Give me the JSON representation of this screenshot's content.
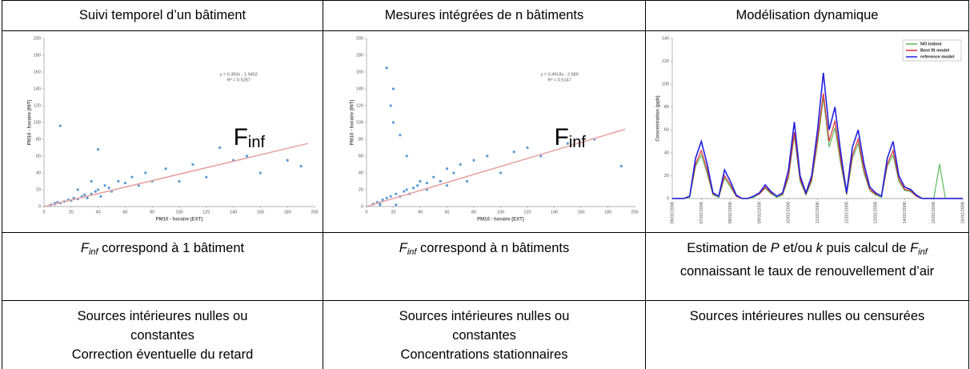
{
  "table": {
    "header": [
      "Suivi temporel d’un bâtiment",
      "Mesures intégrées de n bâtiments",
      "Modélisation dynamique"
    ],
    "row_finf": [
      [
        "F",
        "inf",
        " correspond à 1 bâtiment"
      ],
      [
        "F",
        "inf",
        " correspond à n bâtiments"
      ],
      [
        "Estimation de ",
        "P",
        " et/ou ",
        "k",
        " puis calcul de ",
        "F",
        "inf",
        " connaissant le taux de renouvellement d’air"
      ]
    ],
    "row_sources": [
      [
        "Sources intérieures nulles ou constantes",
        "Correction éventuelle du retard"
      ],
      [
        "Sources intérieures nulles ou constantes",
        "Concentrations stationnaires"
      ],
      [
        "Sources intérieures nulles ou censurées"
      ]
    ]
  },
  "charts": [
    {
      "type": "scatter",
      "xlabel": "PM10 - horaire (EXT)",
      "ylabel": "PM10 - horaire (INT)",
      "equation": "y = 0.393x - 1.9452",
      "r2": "R² = 0.5287",
      "annotation": [
        "F",
        "inf"
      ],
      "xlim": [
        0,
        200
      ],
      "ylim": [
        0,
        200
      ],
      "xticks": [
        0,
        20,
        40,
        60,
        80,
        100,
        120,
        140,
        160,
        180,
        200
      ],
      "yticks": [
        0,
        20,
        40,
        60,
        80,
        100,
        120,
        140,
        160,
        180,
        200
      ],
      "color": "#5b9bd5",
      "trend_color": "#e8a0a0",
      "trend_x": [
        0,
        195
      ],
      "trend_y": [
        0,
        75
      ],
      "x": [
        5,
        8,
        10,
        12,
        15,
        18,
        20,
        22,
        25,
        28,
        30,
        32,
        35,
        38,
        40,
        42,
        45,
        48,
        50,
        55,
        60,
        65,
        70,
        75,
        80,
        90,
        100,
        110,
        120,
        130,
        140,
        150,
        160,
        180,
        190,
        12,
        40,
        25,
        35,
        8
      ],
      "y": [
        2,
        4,
        5,
        4,
        6,
        8,
        7,
        10,
        9,
        12,
        14,
        10,
        15,
        18,
        20,
        12,
        25,
        22,
        18,
        30,
        28,
        35,
        25,
        40,
        30,
        45,
        30,
        50,
        35,
        70,
        55,
        60,
        40,
        55,
        48,
        96,
        68,
        20,
        30,
        3
      ]
    },
    {
      "type": "scatter",
      "xlabel": "PM10 - horaire (EXT)",
      "ylabel": "PM10 - horaire (INT)",
      "equation": "y = 0.4918x - 2.689",
      "r2": "R² = 0.5147",
      "annotation": [
        "F",
        "inf"
      ],
      "xlim": [
        0,
        200
      ],
      "ylim": [
        0,
        200
      ],
      "xticks": [
        0,
        20,
        40,
        60,
        80,
        100,
        120,
        140,
        160,
        180,
        200
      ],
      "yticks": [
        0,
        20,
        40,
        60,
        80,
        100,
        120,
        140,
        160,
        180,
        200
      ],
      "color": "#5b9bd5",
      "trend_color": "#e8a0a0",
      "trend_x": [
        0,
        193
      ],
      "trend_y": [
        0,
        92
      ],
      "x": [
        5,
        8,
        10,
        12,
        15,
        18,
        20,
        22,
        25,
        28,
        30,
        32,
        35,
        38,
        40,
        45,
        50,
        55,
        60,
        65,
        70,
        80,
        90,
        100,
        110,
        120,
        130,
        150,
        170,
        190,
        15,
        18,
        20,
        25,
        30,
        22,
        10,
        45,
        60,
        75
      ],
      "y": [
        3,
        5,
        4,
        8,
        10,
        12,
        140,
        15,
        12,
        18,
        20,
        15,
        22,
        25,
        30,
        28,
        35,
        30,
        45,
        40,
        50,
        55,
        60,
        40,
        65,
        70,
        60,
        75,
        80,
        48,
        165,
        120,
        100,
        85,
        60,
        2,
        2,
        20,
        25,
        30
      ]
    },
    {
      "type": "line",
      "ylabel": "Concentration (ppb)",
      "ylim": [
        0,
        140
      ],
      "yticks": [
        0,
        20,
        40,
        60,
        80,
        100,
        120,
        140
      ],
      "xlim": [
        0,
        10
      ],
      "xticks": [
        {
          "value": 0,
          "label": "06/02/2008"
        },
        {
          "value": 1,
          "label": "07/02/2008"
        },
        {
          "value": 2,
          "label": "08/02/2008"
        },
        {
          "value": 3,
          "label": "09/02/2008"
        },
        {
          "value": 4,
          "label": "10/02/2008"
        },
        {
          "value": 5,
          "label": "11/02/2008"
        },
        {
          "value": 6,
          "label": "12/02/2008"
        },
        {
          "value": 7,
          "label": "13/02/2008"
        },
        {
          "value": 8,
          "label": "14/02/2008"
        },
        {
          "value": 9,
          "label": "15/02/2008"
        },
        {
          "value": 10,
          "label": "16/02/2008"
        }
      ],
      "x": [
        0,
        0.2,
        0.4,
        0.6,
        0.8,
        1,
        1.2,
        1.4,
        1.6,
        1.8,
        2,
        2.2,
        2.4,
        2.6,
        2.8,
        3,
        3.2,
        3.4,
        3.6,
        3.8,
        4,
        4.2,
        4.4,
        4.6,
        4.8,
        5,
        5.2,
        5.4,
        5.6,
        5.8,
        6,
        6.2,
        6.4,
        6.6,
        6.8,
        7,
        7.2,
        7.4,
        7.6,
        7.8,
        8,
        8.2,
        8.4,
        8.6,
        8.8,
        9,
        9.2,
        9.4,
        9.6,
        9.8,
        10
      ],
      "legend": "top-right",
      "series": [
        {
          "name": "NO indoor",
          "color": "#5cb85c",
          "values": [
            0,
            0,
            0,
            1,
            28,
            38,
            22,
            3,
            1,
            18,
            10,
            2,
            0,
            0,
            1,
            4,
            9,
            4,
            1,
            3,
            18,
            55,
            15,
            3,
            15,
            48,
            88,
            45,
            62,
            30,
            3,
            35,
            48,
            22,
            7,
            3,
            1,
            28,
            38,
            15,
            7,
            6,
            2,
            0,
            0,
            0,
            30,
            0,
            0,
            0,
            0
          ]
        },
        {
          "name": "Best fit model",
          "color": "#e03030",
          "values": [
            0,
            0,
            0,
            2,
            30,
            42,
            25,
            4,
            2,
            20,
            12,
            2,
            0,
            0,
            2,
            4,
            10,
            5,
            2,
            4,
            20,
            58,
            17,
            4,
            17,
            52,
            92,
            50,
            68,
            34,
            4,
            38,
            52,
            25,
            8,
            4,
            2,
            30,
            42,
            17,
            8,
            7,
            2,
            0,
            0,
            0,
            0,
            0,
            0,
            0,
            0
          ]
        },
        {
          "name": "reference model",
          "color": "#2020e0",
          "values": [
            0,
            0,
            0,
            2,
            35,
            50,
            30,
            5,
            2,
            25,
            15,
            3,
            0,
            0,
            2,
            5,
            12,
            6,
            2,
            5,
            25,
            67,
            20,
            5,
            20,
            60,
            110,
            60,
            80,
            40,
            5,
            45,
            60,
            30,
            10,
            5,
            2,
            35,
            50,
            20,
            10,
            8,
            3,
            0,
            0,
            0,
            0,
            0,
            0,
            0,
            0
          ]
        }
      ]
    }
  ]
}
